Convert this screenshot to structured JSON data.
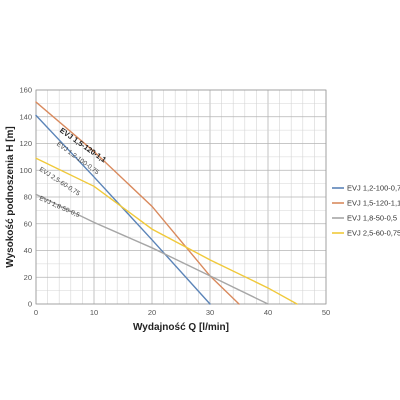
{
  "chart_data": {
    "type": "line",
    "title": "",
    "xlabel": "Wydajność Q [l/min]",
    "ylabel": "Wysokość podnoszenia H [m]",
    "xlim": [
      0,
      50
    ],
    "ylim": [
      0,
      160
    ],
    "x_ticks": [
      0,
      10,
      20,
      30,
      40,
      50
    ],
    "y_ticks": [
      0,
      20,
      40,
      60,
      80,
      100,
      120,
      140,
      160
    ],
    "x_minor_step": 2,
    "y_minor_step": 10,
    "grid": true,
    "legend_position": "right",
    "series": [
      {
        "name": "EVJ 1,2-100-0,75",
        "color": "#5b84b8",
        "x": [
          0,
          10,
          20,
          30
        ],
        "y": [
          141,
          95,
          48,
          0
        ]
      },
      {
        "name": "EVJ 1,5-120-1,1",
        "color": "#d98a5e",
        "x": [
          0,
          10,
          20,
          30,
          35
        ],
        "y": [
          151,
          114,
          73,
          21,
          0
        ]
      },
      {
        "name": "EVJ 1,8-50-0,5",
        "color": "#a6a6a6",
        "x": [
          0,
          10,
          20,
          30,
          40
        ],
        "y": [
          82,
          61,
          42,
          21,
          0
        ]
      },
      {
        "name": "EVJ 2,5-60-0,75",
        "color": "#f0c93a",
        "x": [
          0,
          10,
          20,
          30,
          40,
          45
        ],
        "y": [
          109,
          88,
          56,
          33,
          12,
          0
        ]
      }
    ],
    "curve_labels": [
      {
        "text": "EVJ 1,5-120-1,1",
        "emphasis": true,
        "anchor": [
          4,
          129
        ],
        "angle": 35
      },
      {
        "text": "EVJ 1,2-100-0,75",
        "emphasis": false,
        "anchor": [
          3.5,
          119
        ],
        "angle": 36
      },
      {
        "text": "EVJ 2,5-60-0,75",
        "emphasis": false,
        "anchor": [
          0.5,
          100
        ],
        "angle": 33
      },
      {
        "text": "EVJ 1,8-50-0,5",
        "emphasis": false,
        "anchor": [
          0.5,
          78
        ],
        "angle": 24
      }
    ]
  }
}
